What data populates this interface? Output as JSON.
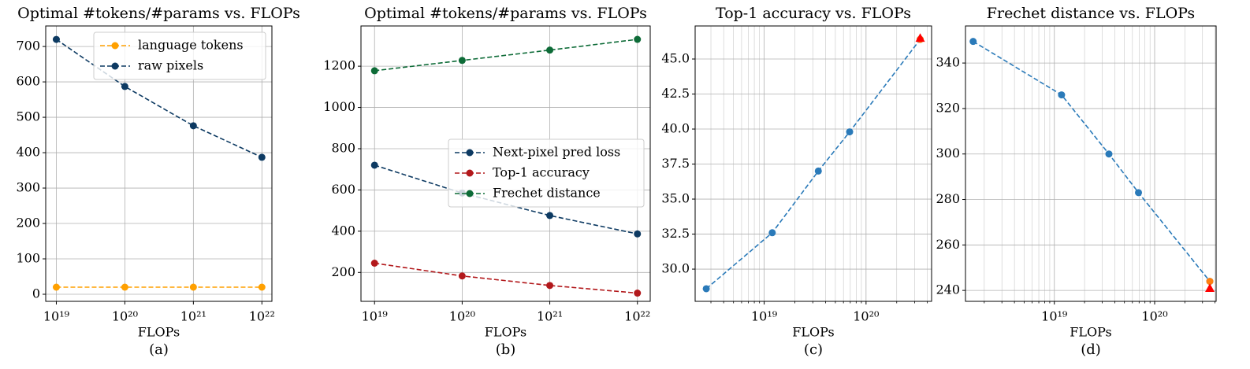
{
  "chart_data": [
    {
      "type": "line",
      "title": "Optimal #tokens/#params vs. FLOPs",
      "xlabel": "FLOPs",
      "caption": "(a)",
      "xscale": "log",
      "grid": true,
      "legend": "upper right",
      "x": [
        1e+19,
        1e+20,
        1e+21,
        1e+22
      ],
      "xlim": [
        7e+18,
        1.4e+22
      ],
      "xticks": [
        {
          "value": 1e+19,
          "label": "10¹⁹"
        },
        {
          "value": 1e+20,
          "label": "10²⁰"
        },
        {
          "value": 1e+21,
          "label": "10²¹"
        },
        {
          "value": 1e+22,
          "label": "10²²"
        }
      ],
      "ylim": [
        -20,
        758
      ],
      "yticks": [
        0,
        100,
        200,
        300,
        400,
        500,
        600,
        700
      ],
      "series": [
        {
          "name": "language tokens",
          "color": "#ffa000",
          "marker": "o",
          "linestyle": "--",
          "values": [
            20,
            20,
            20,
            20
          ]
        },
        {
          "name": "raw pixels",
          "color": "#0d3a62",
          "marker": "o",
          "linestyle": "--",
          "values": [
            720,
            587,
            476,
            387
          ]
        }
      ]
    },
    {
      "type": "line",
      "title": "Optimal #tokens/#params vs. FLOPs",
      "xlabel": "FLOPs",
      "caption": "(b)",
      "xscale": "log",
      "grid": true,
      "legend": "center right",
      "x": [
        1e+19,
        1e+20,
        1e+21,
        1e+22
      ],
      "xlim": [
        7e+18,
        1.4e+22
      ],
      "xticks": [
        {
          "value": 1e+19,
          "label": "10¹⁹"
        },
        {
          "value": 1e+20,
          "label": "10²⁰"
        },
        {
          "value": 1e+21,
          "label": "10²¹"
        },
        {
          "value": 1e+22,
          "label": "10²²"
        }
      ],
      "ylim": [
        60,
        1395
      ],
      "yticks": [
        200,
        400,
        600,
        800,
        1000,
        1200
      ],
      "series": [
        {
          "name": "Next-pixel pred loss",
          "color": "#0d3a62",
          "marker": "o",
          "linestyle": "--",
          "values": [
            720,
            585,
            476,
            387
          ]
        },
        {
          "name": "Top-1 accuracy",
          "color": "#b2181b",
          "marker": "o",
          "linestyle": "--",
          "values": [
            245,
            183,
            137,
            100
          ]
        },
        {
          "name": "Frechet distance",
          "color": "#0d6b37",
          "marker": "o",
          "linestyle": "--",
          "values": [
            1178,
            1228,
            1278,
            1330
          ]
        }
      ]
    },
    {
      "type": "line",
      "title": "Top-1 accuracy vs. FLOPs",
      "xlabel": "FLOPs",
      "caption": "(c)",
      "xscale": "log",
      "grid": true,
      "xlim": [
        2.1e+18,
        4.4e+20
      ],
      "xticks": [
        {
          "value": 1e+19,
          "label": "10¹⁹"
        },
        {
          "value": 1e+20,
          "label": "10²⁰"
        }
      ],
      "xminorticks": [
        3e+18,
        4e+18,
        5e+18,
        6e+18,
        7e+18,
        8e+18,
        9e+18,
        2e+19,
        3e+19,
        4e+19,
        5e+19,
        6e+19,
        7e+19,
        8e+19,
        9e+19,
        2e+20,
        3e+20,
        4e+20
      ],
      "ylim": [
        27.7,
        47.36
      ],
      "yticks": [
        {
          "value": 30,
          "label": "30.0"
        },
        32.5,
        {
          "value": 35,
          "label": "35.0"
        },
        37.5,
        {
          "value": 40,
          "label": "40.0"
        },
        42.5,
        {
          "value": 45,
          "label": "45.0"
        }
      ],
      "series": [
        {
          "color": "#2a7ab9",
          "marker": "o",
          "linestyle": "--",
          "x": [
            2.7e+18,
            1.2e+19,
            3.4e+19,
            6.9e+19,
            3.4e+20
          ],
          "values": [
            28.6,
            32.6,
            37.0,
            39.8,
            46.4
          ]
        },
        {
          "color": "#ff7f0e",
          "marker": "o",
          "x": [
            3.4e+20
          ],
          "values": [
            46.4
          ]
        },
        {
          "color": "#ff0000",
          "marker": "^",
          "x": [
            3.4e+20
          ],
          "values": [
            46.5
          ]
        }
      ]
    },
    {
      "type": "line",
      "title": "Frechet distance vs. FLOPs",
      "xlabel": "FLOPs",
      "caption": "(d)",
      "xscale": "log",
      "grid": true,
      "xlim": [
        1.3e+18,
        4.1e+20
      ],
      "xticks": [
        {
          "value": 1e+19,
          "label": "10¹⁹"
        },
        {
          "value": 1e+20,
          "label": "10²⁰"
        }
      ],
      "xminorticks": [
        2e+18,
        3e+18,
        4e+18,
        5e+18,
        6e+18,
        7e+18,
        8e+18,
        9e+18,
        2e+19,
        3e+19,
        4e+19,
        5e+19,
        6e+19,
        7e+19,
        8e+19,
        9e+19,
        2e+20,
        3e+20,
        4e+20
      ],
      "ylim": [
        235.2,
        356.3
      ],
      "yticks": [
        240,
        260,
        280,
        300,
        320,
        340
      ],
      "series": [
        {
          "color": "#2a7ab9",
          "marker": "o",
          "linestyle": "--",
          "x": [
            1.55e+18,
            1.18e+19,
            3.5e+19,
            6.9e+19,
            3.55e+20
          ],
          "values": [
            349.5,
            326,
            300,
            283,
            244
          ]
        },
        {
          "color": "#ff7f0e",
          "marker": "o",
          "x": [
            3.55e+20
          ],
          "values": [
            244
          ]
        },
        {
          "color": "#ff0000",
          "marker": "^",
          "x": [
            3.55e+20
          ],
          "values": [
            241
          ]
        }
      ]
    }
  ]
}
